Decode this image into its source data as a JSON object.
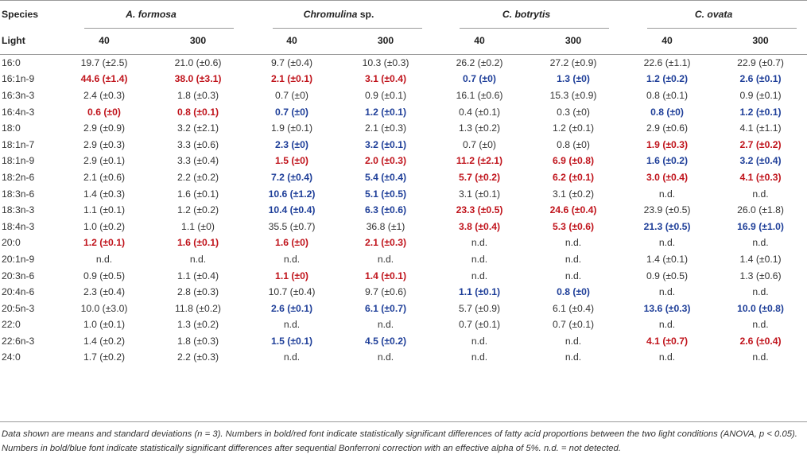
{
  "header": {
    "species_label": "Species",
    "light_label": "Light",
    "species": [
      {
        "name": "A. formosa",
        "suffix": ""
      },
      {
        "name": "Chromulina",
        "suffix": " sp."
      },
      {
        "name": "C. botrytis",
        "suffix": ""
      },
      {
        "name": "C. ovata",
        "suffix": ""
      }
    ],
    "light_levels": [
      "40",
      "300",
      "40",
      "300",
      "40",
      "300",
      "40",
      "300"
    ]
  },
  "colors": {
    "red": "#c0141c",
    "blue": "#1f3f99"
  },
  "rows": [
    {
      "fa": "16:0",
      "cells": [
        [
          "19.7 (±2.5)",
          ""
        ],
        [
          "21.0 (±0.6)",
          ""
        ],
        [
          "9.7 (±0.4)",
          ""
        ],
        [
          "10.3 (±0.3)",
          ""
        ],
        [
          "26.2 (±0.2)",
          ""
        ],
        [
          "27.2 (±0.9)",
          ""
        ],
        [
          "22.6 (±1.1)",
          ""
        ],
        [
          "22.9 (±0.7)",
          ""
        ]
      ]
    },
    {
      "fa": "16:1n-9",
      "cells": [
        [
          "44.6 (±1.4)",
          "red"
        ],
        [
          "38.0 (±3.1)",
          "red"
        ],
        [
          "2.1 (±0.1)",
          "red"
        ],
        [
          "3.1 (±0.4)",
          "red"
        ],
        [
          "0.7 (±0)",
          "blue"
        ],
        [
          "1.3 (±0)",
          "blue"
        ],
        [
          "1.2 (±0.2)",
          "blue"
        ],
        [
          "2.6 (±0.1)",
          "blue"
        ]
      ]
    },
    {
      "fa": "16:3n-3",
      "cells": [
        [
          "2.4 (±0.3)",
          ""
        ],
        [
          "1.8 (±0.3)",
          ""
        ],
        [
          "0.7 (±0)",
          ""
        ],
        [
          "0.9 (±0.1)",
          ""
        ],
        [
          "16.1 (±0.6)",
          ""
        ],
        [
          "15.3 (±0.9)",
          ""
        ],
        [
          "0.8 (±0.1)",
          ""
        ],
        [
          "0.9 (±0.1)",
          ""
        ]
      ]
    },
    {
      "fa": "16:4n-3",
      "cells": [
        [
          "0.6 (±0)",
          "red"
        ],
        [
          "0.8 (±0.1)",
          "red"
        ],
        [
          "0.7 (±0)",
          "blue"
        ],
        [
          "1.2 (±0.1)",
          "blue"
        ],
        [
          "0.4 (±0.1)",
          ""
        ],
        [
          "0.3 (±0)",
          ""
        ],
        [
          "0.8 (±0)",
          "blue"
        ],
        [
          "1.2 (±0.1)",
          "blue"
        ]
      ]
    },
    {
      "fa": "18:0",
      "cells": [
        [
          "2.9 (±0.9)",
          ""
        ],
        [
          "3.2 (±2.1)",
          ""
        ],
        [
          "1.9 (±0.1)",
          ""
        ],
        [
          "2.1 (±0.3)",
          ""
        ],
        [
          "1.3 (±0.2)",
          ""
        ],
        [
          "1.2 (±0.1)",
          ""
        ],
        [
          "2.9 (±0.6)",
          ""
        ],
        [
          "4.1 (±1.1)",
          ""
        ]
      ]
    },
    {
      "fa": "18:1n-7",
      "cells": [
        [
          "2.9 (±0.3)",
          ""
        ],
        [
          "3.3 (±0.6)",
          ""
        ],
        [
          "2.3 (±0)",
          "blue"
        ],
        [
          "3.2 (±0.1)",
          "blue"
        ],
        [
          "0.7 (±0)",
          ""
        ],
        [
          "0.8 (±0)",
          ""
        ],
        [
          "1.9 (±0.3)",
          "red"
        ],
        [
          "2.7 (±0.2)",
          "red"
        ]
      ]
    },
    {
      "fa": "18:1n-9",
      "cells": [
        [
          "2.9 (±0.1)",
          ""
        ],
        [
          "3.3 (±0.4)",
          ""
        ],
        [
          "1.5 (±0)",
          "red"
        ],
        [
          "2.0 (±0.3)",
          "red"
        ],
        [
          "11.2 (±2.1)",
          "red"
        ],
        [
          "6.9 (±0.8)",
          "red"
        ],
        [
          "1.6 (±0.2)",
          "blue"
        ],
        [
          "3.2 (±0.4)",
          "blue"
        ]
      ]
    },
    {
      "fa": "18:2n-6",
      "cells": [
        [
          "2.1 (±0.6)",
          ""
        ],
        [
          "2.2 (±0.2)",
          ""
        ],
        [
          "7.2 (±0.4)",
          "blue"
        ],
        [
          "5.4 (±0.4)",
          "blue"
        ],
        [
          "5.7 (±0.2)",
          "red"
        ],
        [
          "6.2 (±0.1)",
          "red"
        ],
        [
          "3.0 (±0.4)",
          "red"
        ],
        [
          "4.1 (±0.3)",
          "red"
        ]
      ]
    },
    {
      "fa": "18:3n-6",
      "cells": [
        [
          "1.4 (±0.3)",
          ""
        ],
        [
          "1.6 (±0.1)",
          ""
        ],
        [
          "10.6 (±1.2)",
          "blue"
        ],
        [
          "5.1 (±0.5)",
          "blue"
        ],
        [
          "3.1 (±0.1)",
          ""
        ],
        [
          "3.1 (±0.2)",
          ""
        ],
        [
          "n.d.",
          ""
        ],
        [
          "n.d.",
          ""
        ]
      ]
    },
    {
      "fa": "18:3n-3",
      "cells": [
        [
          "1.1 (±0.1)",
          ""
        ],
        [
          "1.2 (±0.2)",
          ""
        ],
        [
          "10.4 (±0.4)",
          "blue"
        ],
        [
          "6.3 (±0.6)",
          "blue"
        ],
        [
          "23.3 (±0.5)",
          "red"
        ],
        [
          "24.6 (±0.4)",
          "red"
        ],
        [
          "23.9 (±0.5)",
          ""
        ],
        [
          "26.0 (±1.8)",
          ""
        ]
      ]
    },
    {
      "fa": "18:4n-3",
      "cells": [
        [
          "1.0 (±0.2)",
          ""
        ],
        [
          "1.1 (±0)",
          ""
        ],
        [
          "35.5 (±0.7)",
          ""
        ],
        [
          "36.8 (±1)",
          ""
        ],
        [
          "3.8 (±0.4)",
          "red"
        ],
        [
          "5.3 (±0.6)",
          "red"
        ],
        [
          "21.3 (±0.5)",
          "blue"
        ],
        [
          "16.9 (±1.0)",
          "blue"
        ]
      ]
    },
    {
      "fa": "20:0",
      "cells": [
        [
          "1.2 (±0.1)",
          "red"
        ],
        [
          "1.6 (±0.1)",
          "red"
        ],
        [
          "1.6 (±0)",
          "red"
        ],
        [
          "2.1 (±0.3)",
          "red"
        ],
        [
          "n.d.",
          ""
        ],
        [
          "n.d.",
          ""
        ],
        [
          "n.d.",
          ""
        ],
        [
          "n.d.",
          ""
        ]
      ]
    },
    {
      "fa": "20:1n-9",
      "cells": [
        [
          "n.d.",
          ""
        ],
        [
          "n.d.",
          ""
        ],
        [
          "n.d.",
          ""
        ],
        [
          "n.d.",
          ""
        ],
        [
          "n.d.",
          ""
        ],
        [
          "n.d.",
          ""
        ],
        [
          "1.4 (±0.1)",
          ""
        ],
        [
          "1.4 (±0.1)",
          ""
        ]
      ]
    },
    {
      "fa": "20:3n-6",
      "cells": [
        [
          "0.9 (±0.5)",
          ""
        ],
        [
          "1.1 (±0.4)",
          ""
        ],
        [
          "1.1 (±0)",
          "red"
        ],
        [
          "1.4 (±0.1)",
          "red"
        ],
        [
          "n.d.",
          ""
        ],
        [
          "n.d.",
          ""
        ],
        [
          "0.9 (±0.5)",
          ""
        ],
        [
          "1.3 (±0.6)",
          ""
        ]
      ]
    },
    {
      "fa": "20:4n-6",
      "cells": [
        [
          "2.3 (±0.4)",
          ""
        ],
        [
          "2.8 (±0.3)",
          ""
        ],
        [
          "10.7 (±0.4)",
          ""
        ],
        [
          "9.7 (±0.6)",
          ""
        ],
        [
          "1.1 (±0.1)",
          "blue"
        ],
        [
          "0.8 (±0)",
          "blue"
        ],
        [
          "n.d.",
          ""
        ],
        [
          "n.d.",
          ""
        ]
      ]
    },
    {
      "fa": "20:5n-3",
      "cells": [
        [
          "10.0 (±3.0)",
          ""
        ],
        [
          "11.8 (±0.2)",
          ""
        ],
        [
          "2.6 (±0.1)",
          "blue"
        ],
        [
          "6.1 (±0.7)",
          "blue"
        ],
        [
          "5.7 (±0.9)",
          ""
        ],
        [
          "6.1 (±0.4)",
          ""
        ],
        [
          "13.6 (±0.3)",
          "blue"
        ],
        [
          "10.0 (±0.8)",
          "blue"
        ]
      ]
    },
    {
      "fa": "22:0",
      "cells": [
        [
          "1.0 (±0.1)",
          ""
        ],
        [
          "1.3 (±0.2)",
          ""
        ],
        [
          "n.d.",
          ""
        ],
        [
          "n.d.",
          ""
        ],
        [
          "0.7 (±0.1)",
          ""
        ],
        [
          "0.7 (±0.1)",
          ""
        ],
        [
          "n.d.",
          ""
        ],
        [
          "n.d.",
          ""
        ]
      ]
    },
    {
      "fa": "22:6n-3",
      "cells": [
        [
          "1.4 (±0.2)",
          ""
        ],
        [
          "1.8 (±0.3)",
          ""
        ],
        [
          "1.5 (±0.1)",
          "blue"
        ],
        [
          "4.5 (±0.2)",
          "blue"
        ],
        [
          "n.d.",
          ""
        ],
        [
          "n.d.",
          ""
        ],
        [
          "4.1 (±0.7)",
          "red"
        ],
        [
          "2.6 (±0.4)",
          "red"
        ]
      ]
    },
    {
      "fa": "24:0",
      "cells": [
        [
          "1.7 (±0.2)",
          ""
        ],
        [
          "2.2 (±0.3)",
          ""
        ],
        [
          "n.d.",
          ""
        ],
        [
          "n.d.",
          ""
        ],
        [
          "n.d.",
          ""
        ],
        [
          "n.d.",
          ""
        ],
        [
          "n.d.",
          ""
        ],
        [
          "n.d.",
          ""
        ]
      ]
    }
  ],
  "footnote": "Data shown are means and standard deviations (n = 3). Numbers in bold/red font indicate statistically significant differences of fatty acid proportions between the two light conditions (ANOVA, p < 0.05). Numbers in bold/blue font indicate statistically significant differences after sequential Bonferroni correction with an effective alpha of 5%. n.d. = not detected."
}
